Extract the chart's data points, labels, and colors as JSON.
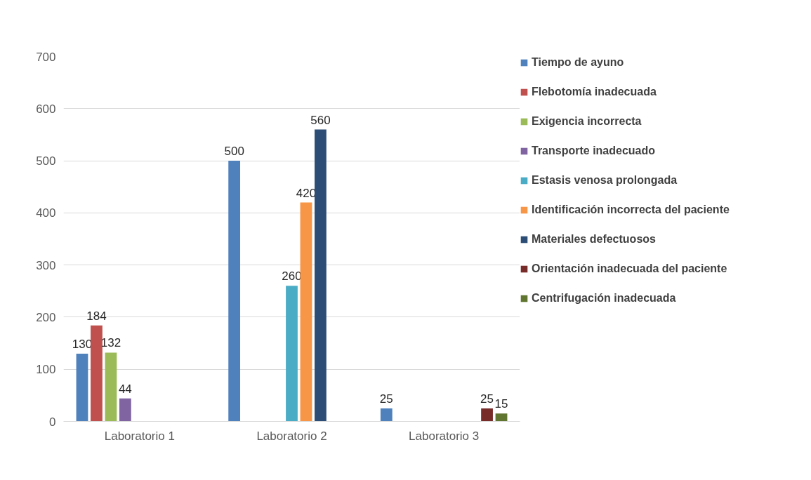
{
  "chart_data": {
    "type": "bar",
    "categories": [
      "Laboratorio 1",
      "Laboratorio 2",
      "Laboratorio 3"
    ],
    "series": [
      {
        "name": "Tiempo de ayuno",
        "color": "#4f81bd",
        "values": [
          130,
          500,
          25
        ]
      },
      {
        "name": "Flebotomía inadecuada",
        "color": "#c0504d",
        "values": [
          184,
          null,
          null
        ]
      },
      {
        "name": "Exigencia incorrecta",
        "color": "#9bbb59",
        "values": [
          132,
          null,
          null
        ]
      },
      {
        "name": "Transporte inadecuado",
        "color": "#8064a2",
        "values": [
          44,
          null,
          null
        ]
      },
      {
        "name": "Estasis venosa prolongada",
        "color": "#4bacc6",
        "values": [
          null,
          260,
          null
        ]
      },
      {
        "name": "Identificación incorrecta del paciente",
        "color": "#f79646",
        "values": [
          null,
          420,
          null
        ]
      },
      {
        "name": "Materiales defectuosos",
        "color": "#2c4d75",
        "values": [
          null,
          560,
          null
        ]
      },
      {
        "name": "Orientación inadecuada del paciente",
        "color": "#772c2a",
        "values": [
          null,
          null,
          25
        ]
      },
      {
        "name": "Centrifugación inadecuada",
        "color": "#5f7530",
        "values": [
          null,
          null,
          15
        ]
      }
    ],
    "ylim": [
      0,
      700
    ],
    "yticks": [
      0,
      100,
      200,
      300,
      400,
      500,
      600,
      700
    ],
    "grid": "y",
    "legend": "right",
    "data_labels": true
  }
}
